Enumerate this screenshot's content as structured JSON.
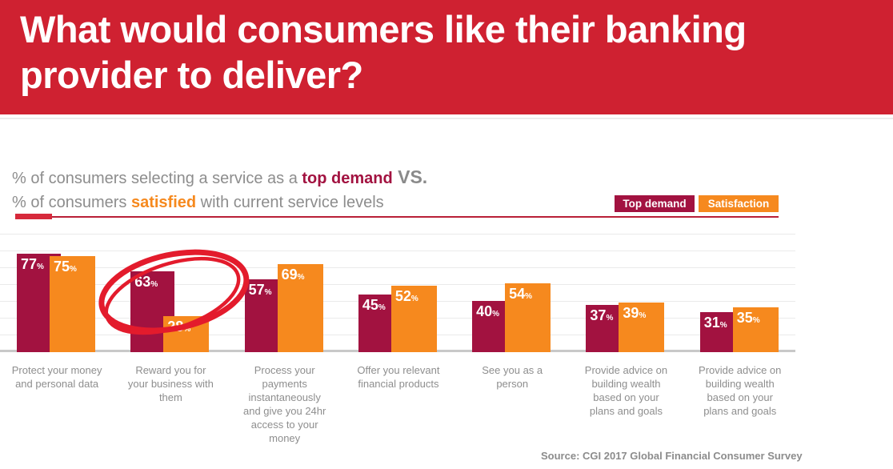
{
  "header": {
    "title": "What would consumers like their banking provider to deliver?"
  },
  "subtitle": {
    "line1_prefix": "% of consumers selecting a service as a ",
    "line1_highlight": "top demand",
    "line1_vs": " VS.",
    "line2_prefix": "% of consumers ",
    "line2_highlight": "satisfied",
    "line2_suffix": " with current service levels"
  },
  "legend": {
    "items": [
      {
        "label": "Top demand",
        "color": "#A21240"
      },
      {
        "label": "Satisfaction",
        "color": "#F6891E"
      }
    ]
  },
  "chart_data": {
    "type": "bar",
    "title": "What would consumers like their banking provider to deliver?",
    "subtitle": "% of consumers selecting a service as a top demand VS. % of consumers satisfied with current service levels",
    "categories": [
      "Protect your money and personal data",
      "Reward you for your business with them",
      "Process your payments instantaneously and give you 24hr access to your money",
      "Offer you relevant financial products",
      "See you as a person",
      "Provide advice on building wealth based on your plans and goals",
      "Provide advice on building wealth based on your plans and goals"
    ],
    "series": [
      {
        "name": "Top demand",
        "color": "#A21240",
        "values": [
          77,
          63,
          57,
          45,
          40,
          37,
          31
        ]
      },
      {
        "name": "Satisfaction",
        "color": "#F6891E",
        "values": [
          75,
          28,
          69,
          52,
          54,
          39,
          35
        ]
      }
    ],
    "unit": "%",
    "ylim": [
      0,
      100
    ],
    "grid": "horizontal",
    "legend_position": "top-right",
    "annotation": {
      "type": "hand-drawn-circle",
      "color": "#E31B2C",
      "circled_category_index": 1,
      "note": "Red marker circle around 'Reward you for your business with them' (63% top demand vs 28% satisfaction)"
    }
  },
  "colors": {
    "banner": "#CF2131",
    "top_demand": "#A21240",
    "satisfaction": "#F6891E",
    "circle_annotation": "#E31B2C",
    "subtitle_text": "#8D8D8D"
  },
  "footer": {
    "source": "Source: CGI 2017 Global Financial Consumer Survey"
  }
}
